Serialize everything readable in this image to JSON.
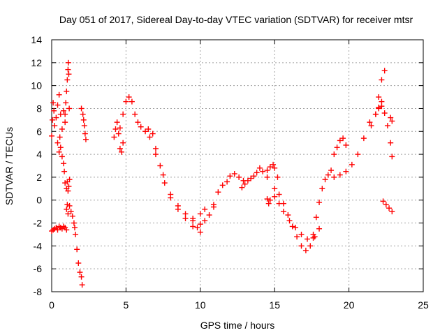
{
  "chart_data": {
    "type": "scatter",
    "title": "Day 051 of 2017, Sidereal Day-to-day VTEC variation (SDTVAR) for receiver mtsr",
    "xlabel": "GPS time / hours",
    "ylabel": "SDTVAR / TECUs",
    "xlim": [
      0,
      25
    ],
    "ylim": [
      -8,
      14
    ],
    "xticks": [
      0,
      5,
      10,
      15,
      20,
      25
    ],
    "yticks": [
      -8,
      -6,
      -4,
      -2,
      0,
      2,
      4,
      6,
      8,
      10,
      12,
      14
    ],
    "grid": true,
    "marker": "+",
    "color": "#ff0000",
    "series": [
      {
        "name": "SDTVAR",
        "segments": [
          {
            "x": [
              0.0,
              0.1,
              0.2,
              0.3,
              0.4,
              0.5,
              0.6,
              0.7,
              0.8,
              0.9,
              1.0
            ],
            "y": [
              -2.7,
              -2.6,
              -2.5,
              -2.4,
              -2.6,
              -2.3,
              -2.4,
              -2.5,
              -2.3,
              -2.4,
              -2.6
            ]
          },
          {
            "x": [
              0.0,
              0.05,
              0.1,
              0.15,
              0.2,
              0.3,
              0.4,
              0.5,
              0.6,
              0.7,
              0.8,
              0.9
            ],
            "y": [
              5.6,
              7.0,
              8.5,
              7.8,
              6.5,
              7.2,
              8.3,
              9.2,
              7.5,
              6.2,
              7.8,
              6.8
            ]
          },
          {
            "x": [
              0.4,
              0.5,
              0.55,
              0.6,
              0.7,
              0.8,
              0.85,
              0.9,
              1.0,
              1.05,
              1.1,
              1.15,
              1.2
            ],
            "y": [
              5.0,
              4.2,
              5.5,
              4.6,
              3.8,
              3.2,
              2.5,
              1.5,
              1.0,
              1.6,
              0.8,
              1.2,
              1.8
            ]
          },
          {
            "x": [
              0.9,
              0.95,
              1.0,
              1.05,
              1.1,
              1.12,
              1.15,
              1.18
            ],
            "y": [
              7.5,
              8.5,
              9.5,
              10.5,
              11.4,
              12.0,
              11.0,
              8.0
            ]
          },
          {
            "x": [
              1.0,
              1.05,
              1.1,
              1.2,
              1.3,
              1.4,
              1.5,
              1.55,
              1.6,
              1.7,
              1.8,
              1.9,
              2.0,
              2.05
            ],
            "y": [
              -0.8,
              -0.4,
              -1.2,
              -0.5,
              -1.0,
              -1.4,
              -2.0,
              -2.4,
              -3.0,
              -4.3,
              -5.5,
              -6.3,
              -6.7,
              -7.4
            ]
          },
          {
            "x": [
              2.0,
              2.1,
              2.15,
              2.2,
              2.25,
              2.3
            ],
            "y": [
              8.0,
              7.5,
              7.0,
              6.5,
              5.8,
              5.3
            ]
          },
          {
            "x": [
              4.2,
              4.3,
              4.4,
              4.5,
              4.6,
              4.7,
              4.8
            ],
            "y": [
              5.5,
              6.2,
              6.8,
              5.8,
              4.5,
              4.2,
              5.0
            ]
          },
          {
            "x": [
              4.6,
              4.8,
              5.0,
              5.2,
              5.4,
              5.6,
              5.8,
              6.0,
              6.3,
              6.6,
              7.0,
              7.5,
              8.0,
              8.5,
              9.0,
              9.5,
              10.0
            ],
            "y": [
              6.3,
              7.5,
              8.6,
              9.0,
              8.6,
              7.5,
              6.8,
              6.4,
              6.0,
              5.5,
              4.0,
              2.2,
              0.5,
              -0.8,
              -1.6,
              -2.3,
              -2.8
            ]
          },
          {
            "x": [
              6.5,
              6.8,
              7.0,
              7.3,
              7.6,
              8.0,
              8.5,
              9.0,
              9.5,
              10.0,
              10.3
            ],
            "y": [
              6.2,
              5.8,
              4.5,
              3.0,
              1.5,
              0.2,
              -0.5,
              -1.2,
              -1.8,
              -1.2,
              -0.8
            ]
          },
          {
            "x": [
              9.5,
              9.8,
              10.0,
              10.3,
              10.6,
              10.9
            ],
            "y": [
              -1.6,
              -2.4,
              -2.1,
              -1.8,
              -1.3,
              -0.6
            ]
          },
          {
            "x": [
              10.9,
              11.2,
              11.5,
              11.8,
              12.0,
              12.3,
              12.6,
              12.9
            ],
            "y": [
              -0.4,
              0.7,
              1.3,
              1.6,
              2.1,
              2.3,
              2.0,
              1.7
            ]
          },
          {
            "x": [
              12.8,
              13.0,
              13.2,
              13.4,
              13.6,
              13.8,
              14.0,
              14.2,
              14.5
            ],
            "y": [
              1.1,
              1.4,
              1.7,
              1.9,
              2.1,
              2.4,
              2.8,
              2.5,
              2.0
            ]
          },
          {
            "x": [
              14.5,
              14.7,
              14.9,
              15.0,
              15.2
            ],
            "y": [
              2.6,
              2.9,
              3.1,
              2.8,
              2.0
            ]
          },
          {
            "x": [
              14.5,
              14.6,
              14.7
            ],
            "y": [
              0.1,
              -0.3,
              0.0
            ]
          },
          {
            "x": [
              15.0,
              15.3,
              15.6,
              15.9,
              16.2,
              16.5,
              16.8,
              17.1,
              17.4,
              17.7,
              18.0
            ],
            "y": [
              1.0,
              0.5,
              -0.3,
              -1.3,
              -2.3,
              -3.2,
              -4.0,
              -4.4,
              -4.0,
              -3.2,
              -2.5
            ]
          },
          {
            "x": [
              15.0,
              15.3,
              15.6,
              16.0,
              16.4,
              16.8,
              17.2,
              17.6
            ],
            "y": [
              0.3,
              -0.3,
              -1.0,
              -1.8,
              -2.4,
              -3.0,
              -3.4,
              -3.3
            ]
          },
          {
            "x": [
              17.6,
              17.8,
              18.0,
              18.2,
              18.4,
              18.6,
              18.8
            ],
            "y": [
              -3.0,
              -1.5,
              -0.2,
              1.0,
              1.8,
              2.2,
              2.6
            ]
          },
          {
            "x": [
              19.0,
              19.2,
              19.4,
              19.6,
              19.8
            ],
            "y": [
              4.0,
              4.6,
              5.2,
              5.4,
              4.8
            ]
          },
          {
            "x": [
              19.0,
              19.4,
              19.8,
              20.2,
              20.6,
              21.0,
              21.4,
              21.8,
              22.0,
              22.2
            ],
            "y": [
              2.0,
              2.2,
              2.5,
              3.1,
              4.0,
              5.4,
              6.8,
              7.5,
              8.1,
              8.6
            ]
          },
          {
            "x": [
              21.5,
              21.8,
              22.0,
              22.2,
              22.4
            ],
            "y": [
              6.5,
              7.5,
              9.0,
              10.5,
              11.3
            ]
          },
          {
            "x": [
              22.0,
              22.2,
              22.4,
              22.6,
              22.8,
              22.9
            ],
            "y": [
              8.0,
              8.2,
              7.6,
              6.5,
              5.0,
              3.8
            ]
          },
          {
            "x": [
              22.3,
              22.5,
              22.7,
              22.9
            ],
            "y": [
              -0.1,
              -0.4,
              -0.7,
              -1.0
            ]
          },
          {
            "x": [
              22.8,
              22.9
            ],
            "y": [
              7.2,
              6.9
            ]
          }
        ]
      }
    ]
  }
}
